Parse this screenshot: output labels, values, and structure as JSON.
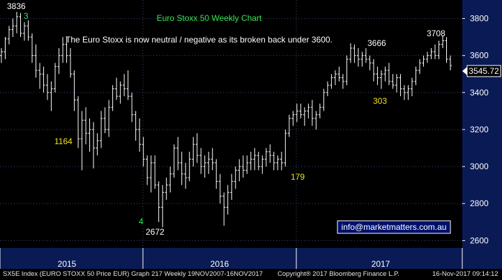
{
  "chart_data": {
    "type": "ohlc",
    "title": "Euro Stoxx 50 Weekly Chart",
    "annotation": "The Euro Stoxx is now neutral / negative as its broken back under 3600.",
    "ylim": [
      2560,
      3900
    ],
    "y_ticks": [
      2600,
      2800,
      3000,
      3200,
      3400,
      3600,
      3800
    ],
    "x_labels": [
      "2015",
      "2016",
      "2017"
    ],
    "last_price": "3545.72",
    "contact": "info@marketmatters.com.au",
    "labels": {
      "high_2015": "3836",
      "wave3": "3",
      "bars_1164": "1164",
      "wave4": "4",
      "low_2016": "2672",
      "bars_179": "179",
      "high_3666": "3666",
      "bars_303": "303",
      "high_3708": "3708"
    },
    "colors": {
      "background": "#000000",
      "plot_background": "#000000",
      "axis_panel": "#0a1a55",
      "bars": "#ffffff",
      "grid": "#3c4a78",
      "green_text": "#33e84a",
      "yellow_text": "#f2e41b",
      "white_text": "#ffffff"
    },
    "series": [
      {
        "points": [
          [
            3600,
            3640,
            3560,
            3620
          ],
          [
            3620,
            3700,
            3580,
            3690
          ],
          [
            3690,
            3760,
            3660,
            3740
          ],
          [
            3740,
            3800,
            3700,
            3760
          ],
          [
            3760,
            3836,
            3720,
            3810
          ],
          [
            3810,
            3830,
            3700,
            3720
          ],
          [
            3720,
            3780,
            3680,
            3760
          ],
          [
            3760,
            3790,
            3680,
            3700
          ],
          [
            3700,
            3720,
            3560,
            3600
          ],
          [
            3600,
            3660,
            3480,
            3520
          ],
          [
            3520,
            3560,
            3420,
            3500
          ],
          [
            3500,
            3540,
            3400,
            3440
          ],
          [
            3440,
            3500,
            3360,
            3400
          ],
          [
            3400,
            3460,
            3300,
            3420
          ],
          [
            3420,
            3560,
            3400,
            3540
          ],
          [
            3540,
            3640,
            3500,
            3600
          ],
          [
            3600,
            3700,
            3560,
            3660
          ],
          [
            3660,
            3700,
            3560,
            3600
          ],
          [
            3600,
            3640,
            3480,
            3500
          ],
          [
            3500,
            3520,
            3300,
            3360
          ],
          [
            3360,
            3380,
            3100,
            3150
          ],
          [
            3150,
            3300,
            2980,
            3250
          ],
          [
            3250,
            3320,
            3120,
            3180
          ],
          [
            3180,
            3260,
            3080,
            3200
          ],
          [
            3200,
            3240,
            2990,
            3100
          ],
          [
            3100,
            3180,
            3060,
            3140
          ],
          [
            3140,
            3300,
            3100,
            3260
          ],
          [
            3260,
            3320,
            3180,
            3200
          ],
          [
            3200,
            3360,
            3160,
            3320
          ],
          [
            3320,
            3440,
            3300,
            3420
          ],
          [
            3420,
            3480,
            3360,
            3380
          ],
          [
            3380,
            3460,
            3340,
            3440
          ],
          [
            3440,
            3500,
            3380,
            3420
          ],
          [
            3420,
            3520,
            3360,
            3380
          ],
          [
            3380,
            3400,
            3240,
            3280
          ],
          [
            3280,
            3300,
            3140,
            3200
          ],
          [
            3200,
            3260,
            3080,
            3120
          ],
          [
            3120,
            3160,
            3000,
            3040
          ],
          [
            3040,
            3060,
            2900,
            2940
          ],
          [
            2940,
            3060,
            2860,
            3020
          ],
          [
            3020,
            3060,
            2880,
            2900
          ],
          [
            2900,
            2920,
            2700,
            2780
          ],
          [
            2780,
            2900,
            2672,
            2860
          ],
          [
            2860,
            2940,
            2820,
            2900
          ],
          [
            2900,
            3000,
            2860,
            2960
          ],
          [
            2960,
            3120,
            2940,
            3100
          ],
          [
            3100,
            3160,
            2980,
            3020
          ],
          [
            3020,
            3080,
            2900,
            2960
          ],
          [
            2960,
            3020,
            2880,
            2940
          ],
          [
            2940,
            3080,
            2920,
            3040
          ],
          [
            3040,
            3160,
            3000,
            3120
          ],
          [
            3120,
            3180,
            3020,
            3060
          ],
          [
            3060,
            3100,
            2960,
            3000
          ],
          [
            3000,
            3060,
            2940,
            3020
          ],
          [
            3020,
            3080,
            2960,
            3040
          ],
          [
            3040,
            3100,
            2980,
            3020
          ],
          [
            3020,
            3040,
            2880,
            2920
          ],
          [
            2920,
            2960,
            2800,
            2840
          ],
          [
            2840,
            2860,
            2680,
            2780
          ],
          [
            2780,
            2900,
            2740,
            2860
          ],
          [
            2860,
            2960,
            2820,
            2920
          ],
          [
            2920,
            3000,
            2880,
            2980
          ],
          [
            2980,
            3040,
            2920,
            3000
          ],
          [
            3000,
            3060,
            2940,
            2980
          ],
          [
            2980,
            3060,
            2960,
            3020
          ],
          [
            3020,
            3080,
            2980,
            3040
          ],
          [
            3040,
            3100,
            2980,
            3060
          ],
          [
            3060,
            3080,
            2980,
            3000
          ],
          [
            3000,
            3060,
            2960,
            3040
          ],
          [
            3040,
            3100,
            3000,
            3080
          ],
          [
            3080,
            3120,
            3020,
            3060
          ],
          [
            3060,
            3080,
            2980,
            3020
          ],
          [
            3020,
            3060,
            2980,
            3040
          ],
          [
            3040,
            3080,
            2980,
            3020
          ],
          [
            3020,
            3200,
            3000,
            3180
          ],
          [
            3180,
            3280,
            3160,
            3260
          ],
          [
            3260,
            3300,
            3220,
            3280
          ],
          [
            3280,
            3340,
            3240,
            3300
          ],
          [
            3300,
            3340,
            3260,
            3280
          ],
          [
            3280,
            3320,
            3220,
            3300
          ],
          [
            3300,
            3340,
            3260,
            3320
          ],
          [
            3320,
            3360,
            3220,
            3260
          ],
          [
            3260,
            3300,
            3200,
            3280
          ],
          [
            3280,
            3340,
            3260,
            3320
          ],
          [
            3320,
            3420,
            3300,
            3400
          ],
          [
            3400,
            3460,
            3380,
            3440
          ],
          [
            3440,
            3500,
            3420,
            3480
          ],
          [
            3480,
            3520,
            3440,
            3500
          ],
          [
            3500,
            3540,
            3460,
            3480
          ],
          [
            3480,
            3500,
            3420,
            3460
          ],
          [
            3460,
            3600,
            3440,
            3580
          ],
          [
            3580,
            3666,
            3560,
            3640
          ],
          [
            3640,
            3660,
            3560,
            3600
          ],
          [
            3600,
            3640,
            3540,
            3580
          ],
          [
            3580,
            3620,
            3540,
            3600
          ],
          [
            3600,
            3640,
            3560,
            3580
          ],
          [
            3580,
            3600,
            3520,
            3560
          ],
          [
            3560,
            3580,
            3460,
            3500
          ],
          [
            3500,
            3540,
            3440,
            3480
          ],
          [
            3480,
            3520,
            3420,
            3500
          ],
          [
            3500,
            3540,
            3460,
            3520
          ],
          [
            3520,
            3560,
            3440,
            3460
          ],
          [
            3460,
            3500,
            3420,
            3440
          ],
          [
            3440,
            3500,
            3400,
            3480
          ],
          [
            3480,
            3500,
            3380,
            3420
          ],
          [
            3420,
            3440,
            3360,
            3400
          ],
          [
            3400,
            3440,
            3360,
            3420
          ],
          [
            3420,
            3480,
            3380,
            3460
          ],
          [
            3460,
            3540,
            3440,
            3520
          ],
          [
            3520,
            3580,
            3500,
            3560
          ],
          [
            3560,
            3600,
            3540,
            3580
          ],
          [
            3580,
            3620,
            3560,
            3600
          ],
          [
            3600,
            3640,
            3580,
            3620
          ],
          [
            3620,
            3660,
            3580,
            3600
          ],
          [
            3600,
            3680,
            3580,
            3660
          ],
          [
            3660,
            3708,
            3640,
            3680
          ],
          [
            3680,
            3700,
            3560,
            3580
          ],
          [
            3580,
            3600,
            3520,
            3546
          ]
        ]
      }
    ],
    "footer": {
      "left": "SX5E Index (EURO STOXX 50 Price EUR) Graph 217  Weekly 19NOV2007-16NOV2017",
      "center": "Copyright® 2017 Bloomberg Finance L.P.",
      "right": "16-Nov-2017 09:14:12"
    }
  }
}
